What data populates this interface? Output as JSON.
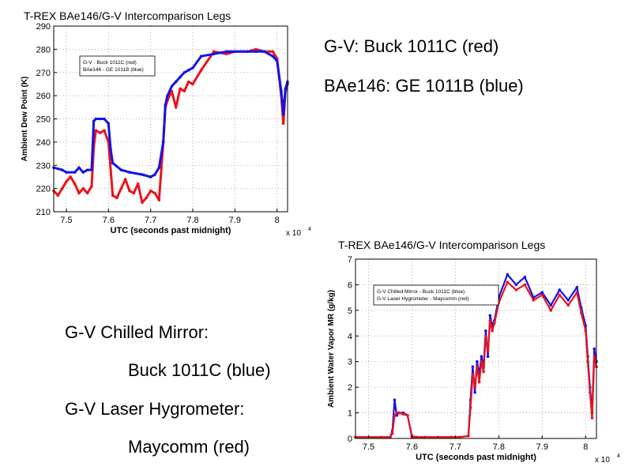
{
  "side_text": {
    "top_1": "G-V: Buck 1011C (red)",
    "top_2": "BAe146: GE 1011B (blue)",
    "bottom_1": "G-V Chilled Mirror:",
    "bottom_2": "Buck 1011C (blue)",
    "bottom_3": "G-V Laser Hygrometer:",
    "bottom_4": "Maycomm (red)"
  },
  "chart_data": [
    {
      "type": "line",
      "title": "T-REX BAe146/G-V Intercomparison Legs",
      "xlabel": "UTC (seconds past midnight)",
      "ylabel": "Ambient Dew Point (K)",
      "x_multiplier_label": "x 10",
      "x_multiplier_exp": "4",
      "xlim": [
        74700,
        80250
      ],
      "ylim": [
        210,
        290
      ],
      "xticks": [
        75000,
        76000,
        77000,
        78000,
        79000,
        80000
      ],
      "xtick_labels": [
        "7.5",
        "7.6",
        "7.7",
        "7.8",
        "7.9",
        "8"
      ],
      "yticks": [
        210,
        220,
        230,
        240,
        250,
        260,
        270,
        280,
        290
      ],
      "grid": true,
      "legend_placement": "top-left",
      "legend": [
        "G-V - Buck 1011C (red)",
        "BAe146 - GE 1011B (blue)"
      ],
      "series": [
        {
          "name": "G-V - Buck 1011C (red)",
          "color": "#e8141c",
          "x": [
            74700,
            74800,
            74900,
            75000,
            75100,
            75200,
            75300,
            75400,
            75500,
            75600,
            75650,
            75700,
            75800,
            75900,
            76000,
            76100,
            76200,
            76300,
            76400,
            76500,
            76600,
            76700,
            76800,
            76900,
            77000,
            77100,
            77200,
            77300,
            77350,
            77400,
            77500,
            77600,
            77700,
            77800,
            77900,
            78000,
            78200,
            78500,
            78800,
            79000,
            79300,
            79500,
            79700,
            79900,
            80000,
            80100,
            80150,
            80200,
            80250
          ],
          "values": [
            219,
            217,
            220,
            223,
            225,
            222,
            218,
            220,
            218,
            221,
            238,
            245,
            244,
            245,
            240,
            217,
            216,
            220,
            224,
            219,
            218,
            222,
            214,
            216,
            219,
            218,
            215,
            240,
            255,
            258,
            262,
            255,
            263,
            262,
            266,
            265,
            271,
            279,
            278,
            279,
            279,
            280,
            279,
            279,
            276,
            260,
            248,
            262,
            265
          ]
        },
        {
          "name": "BAe146 - GE 1011B (blue)",
          "color": "#1414e6",
          "x": [
            74700,
            74900,
            75000,
            75200,
            75300,
            75400,
            75500,
            75600,
            75650,
            75700,
            75800,
            75900,
            76000,
            76050,
            76100,
            76300,
            76500,
            76800,
            77000,
            77100,
            77200,
            77300,
            77350,
            77400,
            77500,
            77600,
            77700,
            77800,
            77900,
            78000,
            78200,
            78500,
            78800,
            79000,
            79300,
            79500,
            79700,
            79900,
            80000,
            80100,
            80150,
            80200,
            80250
          ],
          "values": [
            229,
            228,
            227,
            227,
            229,
            227,
            228,
            228,
            249,
            250,
            250,
            250,
            248,
            237,
            231,
            228,
            227,
            226,
            225,
            226,
            229,
            240,
            256,
            260,
            264,
            266,
            268,
            270,
            271,
            272,
            277,
            278,
            279,
            279,
            279,
            279,
            279,
            277,
            275,
            262,
            252,
            263,
            266
          ]
        }
      ]
    },
    {
      "type": "line",
      "title": "T-REX BAe146/G-V Intercomparison Legs",
      "xlabel": "UTC (seconds past midnight)",
      "ylabel": "Ambient Water Vapor MR (g/kg)",
      "x_multiplier_label": "x 10",
      "x_multiplier_exp": "4",
      "xlim": [
        74700,
        80250
      ],
      "ylim": [
        0,
        7
      ],
      "xticks": [
        75000,
        76000,
        77000,
        78000,
        79000,
        80000
      ],
      "xtick_labels": [
        "7.5",
        "7.6",
        "7.7",
        "7.8",
        "7.9",
        "8"
      ],
      "yticks": [
        0,
        1,
        2,
        3,
        4,
        5,
        6,
        7
      ],
      "grid": true,
      "legend_placement": "top-left",
      "legend": [
        "G-V Chilled Mirror - Buck 1011C (blue)",
        "G-V Laser Hygrometer - Maycomm (red)"
      ],
      "series": [
        {
          "name": "G-V Chilled Mirror - Buck 1011C (blue)",
          "color": "#1414e6",
          "x": [
            74700,
            75000,
            75300,
            75500,
            75550,
            75600,
            75650,
            75700,
            75800,
            75900,
            76000,
            76050,
            76100,
            76300,
            76600,
            76900,
            77100,
            77300,
            77350,
            77400,
            77450,
            77500,
            77550,
            77600,
            77650,
            77700,
            77750,
            77800,
            77850,
            77900,
            78000,
            78200,
            78400,
            78600,
            78800,
            79000,
            79200,
            79400,
            79600,
            79800,
            79900,
            80000,
            80050,
            80100,
            80150,
            80200,
            80250
          ],
          "values": [
            0.05,
            0.05,
            0.05,
            0.05,
            0.3,
            1.5,
            0.9,
            1.0,
            1.0,
            0.9,
            0.1,
            0.05,
            0.05,
            0.05,
            0.05,
            0.05,
            0.05,
            0.1,
            1.5,
            2.8,
            1.8,
            3.0,
            2.5,
            3.2,
            2.8,
            4.2,
            3.2,
            4.8,
            4.4,
            4.6,
            5.5,
            6.4,
            6.0,
            6.3,
            5.5,
            5.7,
            5.2,
            5.8,
            5.4,
            5.9,
            5.1,
            4.4,
            3.2,
            2.0,
            1.0,
            3.5,
            3.0
          ]
        },
        {
          "name": "G-V Laser Hygrometer - Maycomm (red)",
          "color": "#e8141c",
          "x": [
            74700,
            75000,
            75300,
            75500,
            75550,
            75600,
            75650,
            75700,
            75800,
            75900,
            76000,
            76050,
            76100,
            76300,
            76600,
            76900,
            77100,
            77300,
            77350,
            77400,
            77450,
            77500,
            77550,
            77600,
            77650,
            77700,
            77750,
            77800,
            77850,
            77900,
            78000,
            78200,
            78400,
            78600,
            78800,
            79000,
            79200,
            79400,
            79600,
            79800,
            79900,
            80000,
            80050,
            80100,
            80150,
            80200,
            80250
          ],
          "values": [
            0.05,
            0.05,
            0.05,
            0.05,
            0.2,
            0.9,
            1.0,
            1.0,
            0.95,
            0.9,
            0.05,
            0.05,
            0.05,
            0.05,
            0.05,
            0.05,
            0.05,
            0.1,
            1.2,
            2.5,
            2.0,
            2.8,
            2.2,
            3.0,
            2.6,
            4.0,
            3.4,
            4.6,
            4.2,
            4.5,
            5.3,
            6.1,
            5.8,
            6.0,
            5.4,
            5.6,
            5.0,
            5.6,
            5.2,
            5.7,
            4.9,
            4.2,
            3.0,
            1.8,
            0.8,
            3.2,
            2.8
          ]
        }
      ]
    }
  ]
}
